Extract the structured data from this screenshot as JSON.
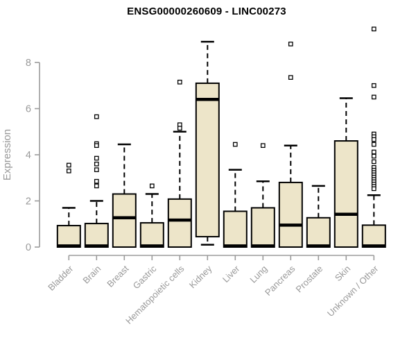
{
  "chart": {
    "title": "ENSG00000260609 - LINC00273"
  },
  "colors": {
    "background": "#FFFFFF",
    "box_fill": "#EDE5C9",
    "box_stroke": "#000000",
    "median": "#000000",
    "whisker": "#000000",
    "outlier_stroke": "#000000",
    "axis": "#9B9B9B",
    "tick_label": "#999999",
    "title": "#000000"
  },
  "chart_data": {
    "type": "boxplot",
    "title": "ENSG00000260609 - LINC00273",
    "xlabel": "",
    "ylabel": "Expression",
    "ylim": [
      0,
      9.6
    ],
    "yticks": [
      0,
      2,
      4,
      6,
      8
    ],
    "grid": false,
    "legend": false,
    "categories": [
      "Bladder",
      "Brain",
      "Breast",
      "Gastric",
      "Hematopoietic cells",
      "Kidney",
      "Liver",
      "Lung",
      "Pancreas",
      "Prostate",
      "Skin",
      "Unknown / Other"
    ],
    "series": [
      {
        "name": "Bladder",
        "low": 0,
        "q1": 0,
        "median": 0.05,
        "q3": 0.93,
        "high": 1.7,
        "outliers": [
          3.55,
          3.3
        ]
      },
      {
        "name": "Brain",
        "low": 0,
        "q1": 0,
        "median": 0.05,
        "q3": 1.02,
        "high": 2.0,
        "outliers": [
          5.65,
          4.48,
          4.4,
          3.85,
          3.6,
          3.35,
          2.85,
          2.65
        ]
      },
      {
        "name": "Breast",
        "low": 0,
        "q1": 0,
        "median": 1.27,
        "q3": 2.3,
        "high": 4.45,
        "outliers": []
      },
      {
        "name": "Gastric",
        "low": 0,
        "q1": 0,
        "median": 0.05,
        "q3": 1.05,
        "high": 2.3,
        "outliers": [
          2.65
        ]
      },
      {
        "name": "Hematopoietic cells",
        "low": 0,
        "q1": 0,
        "median": 1.17,
        "q3": 2.08,
        "high": 5.0,
        "outliers": [
          7.15,
          5.3,
          5.15
        ]
      },
      {
        "name": "Kidney",
        "low": 0.1,
        "q1": 0.45,
        "median": 6.4,
        "q3": 7.1,
        "high": 8.9,
        "outliers": []
      },
      {
        "name": "Liver",
        "low": 0,
        "q1": 0,
        "median": 0.05,
        "q3": 1.55,
        "high": 3.35,
        "outliers": [
          4.45
        ]
      },
      {
        "name": "Lung",
        "low": 0,
        "q1": 0,
        "median": 0.05,
        "q3": 1.7,
        "high": 2.85,
        "outliers": [
          4.4
        ]
      },
      {
        "name": "Pancreas",
        "low": 0,
        "q1": 0,
        "median": 0.95,
        "q3": 2.8,
        "high": 4.4,
        "outliers": [
          8.8,
          7.35
        ]
      },
      {
        "name": "Prostate",
        "low": 0,
        "q1": 0,
        "median": 0.05,
        "q3": 1.27,
        "high": 2.65,
        "outliers": []
      },
      {
        "name": "Skin",
        "low": 0,
        "q1": 0,
        "median": 1.42,
        "q3": 4.6,
        "high": 6.45,
        "outliers": []
      },
      {
        "name": "Unknown / Other",
        "low": 0,
        "q1": 0,
        "median": 0.05,
        "q3": 0.95,
        "high": 2.25,
        "outliers": [
          9.45,
          7.0,
          6.5,
          4.9,
          4.78,
          4.66,
          4.45,
          4.12,
          3.94,
          3.7,
          3.45,
          3.33,
          3.23,
          3.13,
          3.03,
          2.93,
          2.83,
          2.73,
          2.63,
          2.53
        ]
      }
    ]
  }
}
